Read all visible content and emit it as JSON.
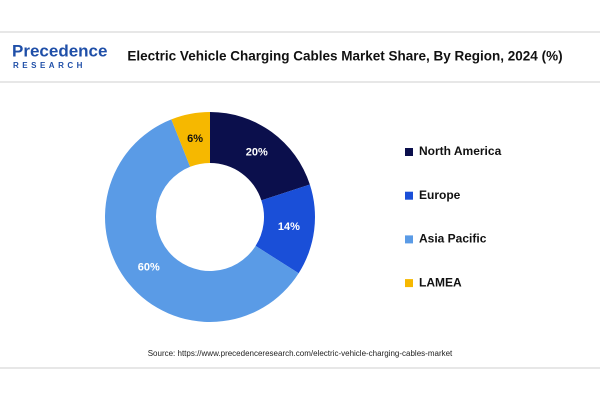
{
  "logo": {
    "name": "Precedence",
    "tagline": "RESEARCH"
  },
  "chart_data": {
    "type": "pie",
    "title": "Electric Vehicle Charging Cables Market Share, By Region, 2024 (%)",
    "categories": [
      "North America",
      "Europe",
      "Asia Pacific",
      "LAMEA"
    ],
    "values": [
      20,
      14,
      60,
      6
    ],
    "value_labels": [
      "20%",
      "14%",
      "60%",
      "6%"
    ],
    "colors": [
      "#0b0f4c",
      "#1a4fd8",
      "#5a9be6",
      "#f6b800"
    ],
    "donut": true,
    "legend": "right",
    "source": "Source: https://www.precedenceresearch.com/electric-vehicle-charging-cables-market"
  }
}
